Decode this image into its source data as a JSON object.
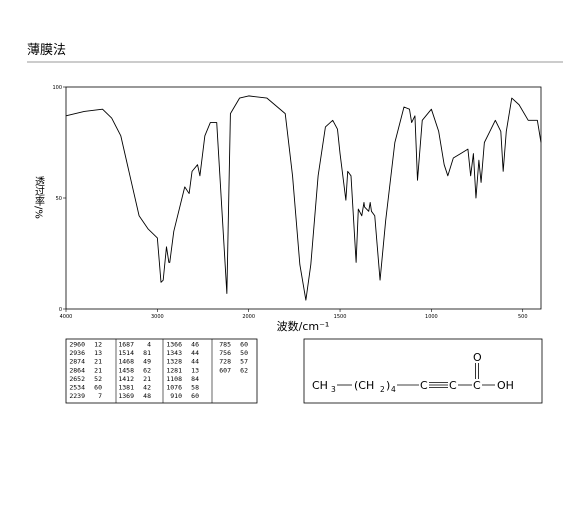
{
  "chart_data": {
    "type": "line",
    "title": "薄膜法",
    "x_label": "波数/cm⁻¹",
    "y_label": "透过率/%",
    "x": [
      4000,
      3800,
      3600,
      3500,
      3400,
      3300,
      3200,
      3100,
      3000,
      2960,
      2936,
      2900,
      2874,
      2864,
      2820,
      2700,
      2652,
      2620,
      2560,
      2534,
      2480,
      2420,
      2350,
      2239,
      2200,
      2100,
      2000,
      1900,
      1800,
      1760,
      1720,
      1687,
      1660,
      1620,
      1580,
      1540,
      1514,
      1500,
      1468,
      1458,
      1440,
      1412,
      1400,
      1381,
      1369,
      1366,
      1343,
      1335,
      1328,
      1310,
      1281,
      1250,
      1200,
      1150,
      1120,
      1108,
      1090,
      1076,
      1050,
      1000,
      960,
      930,
      910,
      880,
      840,
      800,
      785,
      770,
      756,
      740,
      728,
      710,
      680,
      650,
      620,
      607,
      590,
      560,
      520,
      470,
      420,
      400
    ],
    "series": [
      {
        "color": "#000000",
        "values": [
          87,
          89,
          90,
          86,
          78,
          60,
          42,
          36,
          32,
          12,
          13,
          28,
          21,
          21,
          35,
          55,
          52,
          62,
          65,
          60,
          78,
          84,
          84,
          7,
          88,
          95,
          96,
          95,
          88,
          60,
          20,
          4,
          20,
          60,
          82,
          85,
          81,
          70,
          49,
          62,
          60,
          21,
          45,
          42,
          48,
          46,
          44,
          48,
          44,
          42,
          13,
          40,
          75,
          91,
          90,
          84,
          87,
          58,
          85,
          90,
          80,
          65,
          60,
          68,
          70,
          72,
          60,
          70,
          50,
          67,
          57,
          75,
          80,
          85,
          80,
          62,
          80,
          95,
          92,
          85,
          85,
          75
        ]
      }
    ],
    "xlim": [
      4000,
      400
    ],
    "xticks": [
      4000,
      3000,
      2000,
      1500,
      1000,
      500
    ],
    "ylim": [
      0,
      100
    ],
    "yticks": [
      0,
      50,
      100
    ],
    "grid": false,
    "peak_table": [
      [
        [
          2960,
          12
        ],
        [
          2936,
          13
        ],
        [
          2874,
          21
        ],
        [
          2864,
          21
        ],
        [
          2652,
          52
        ],
        [
          2534,
          60
        ],
        [
          2239,
          7
        ]
      ],
      [
        [
          1687,
          4
        ],
        [
          1514,
          81
        ],
        [
          1468,
          49
        ],
        [
          1458,
          62
        ],
        [
          1412,
          21
        ],
        [
          1381,
          42
        ],
        [
          1369,
          48
        ]
      ],
      [
        [
          1366,
          46
        ],
        [
          1343,
          44
        ],
        [
          1328,
          44
        ],
        [
          1281,
          13
        ],
        [
          1108,
          84
        ],
        [
          1076,
          58
        ],
        [
          910,
          60
        ]
      ],
      [
        [
          785,
          60
        ],
        [
          756,
          50
        ],
        [
          728,
          57
        ],
        [
          607,
          62
        ]
      ]
    ],
    "structure": [
      "CH",
      "3",
      "(CH",
      "2",
      ")",
      "4",
      "C",
      "C",
      "C",
      "O",
      "OH"
    ]
  }
}
